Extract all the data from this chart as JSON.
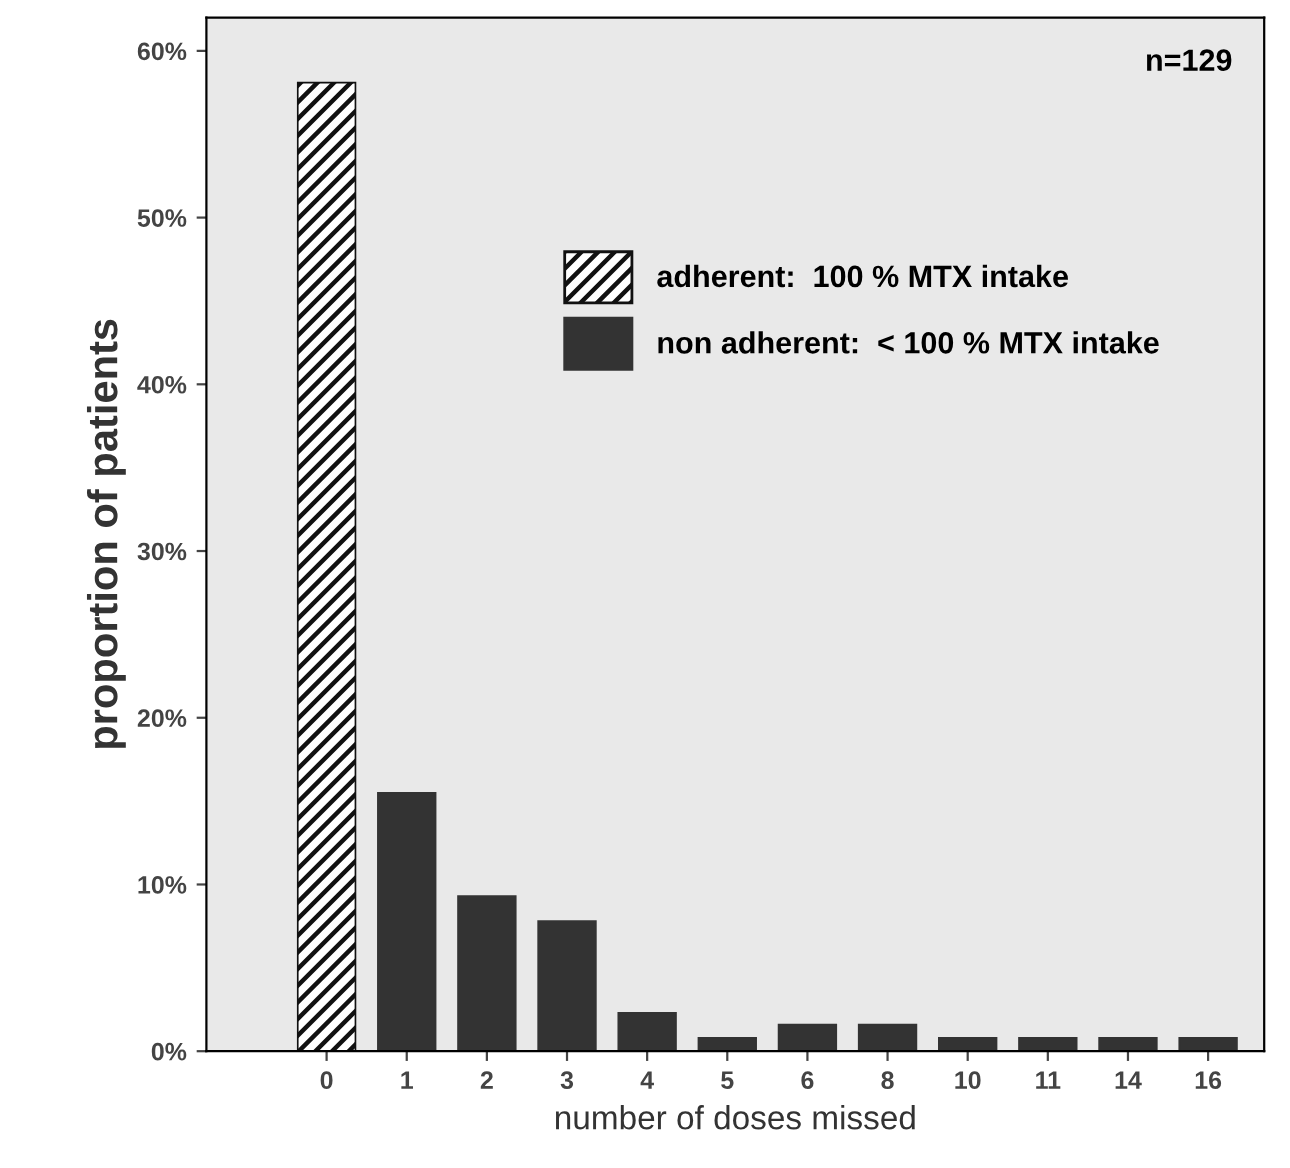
{
  "chart_data": {
    "type": "bar",
    "xlabel": "number of doses missed",
    "ylabel": "proportion of patients",
    "categories": [
      "0",
      "1",
      "2",
      "3",
      "4",
      "5",
      "6",
      "8",
      "10",
      "11",
      "14",
      "16"
    ],
    "series": [
      {
        "name": "adherent:  100 % MTX intake",
        "color": "#111111",
        "values": [
          58.1,
          null,
          null,
          null,
          null,
          null,
          null,
          null,
          null,
          null,
          null,
          null
        ]
      },
      {
        "name": "non adherent:  < 100 % MTX intake",
        "color": "#333333",
        "values": [
          null,
          15.5,
          9.3,
          7.8,
          2.3,
          0.8,
          1.6,
          1.6,
          0.8,
          0.8,
          0.8,
          0.8
        ]
      }
    ],
    "ylim": [
      0,
      62
    ],
    "yticks": [
      {
        "value": 0,
        "label": "0%"
      },
      {
        "value": 10,
        "label": "10%"
      },
      {
        "value": 20,
        "label": "20%"
      },
      {
        "value": 30,
        "label": "30%"
      },
      {
        "value": 40,
        "label": "40%"
      },
      {
        "value": 50,
        "label": "50%"
      },
      {
        "value": 60,
        "label": "60%"
      }
    ],
    "annotations": [
      "n=129"
    ],
    "legend": "top",
    "grid": false
  }
}
